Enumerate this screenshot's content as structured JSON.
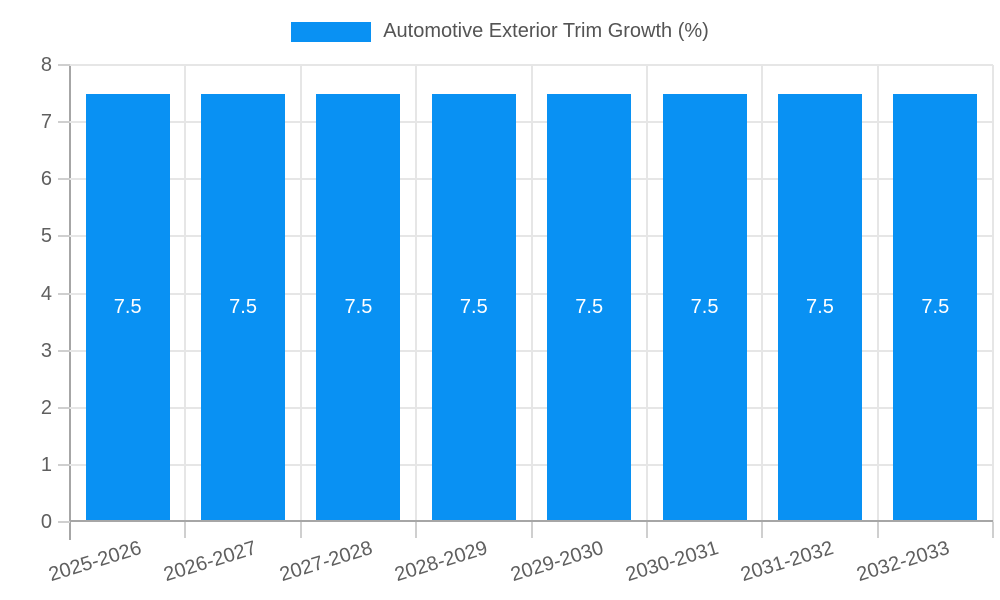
{
  "legend": {
    "label": "Automotive Exterior Trim Growth (%)"
  },
  "chart_data": {
    "type": "bar",
    "title": "Automotive Exterior Trim Growth (%)",
    "categories": [
      "2025-2026",
      "2026-2027",
      "2027-2028",
      "2028-2029",
      "2029-2030",
      "2030-2031",
      "2031-2032",
      "2032-2033"
    ],
    "values": [
      7.5,
      7.5,
      7.5,
      7.5,
      7.5,
      7.5,
      7.5,
      7.5
    ],
    "bar_labels": [
      "7.5",
      "7.5",
      "7.5",
      "7.5",
      "7.5",
      "7.5",
      "7.5",
      "7.5"
    ],
    "xlabel": "",
    "ylabel": "",
    "ylim": [
      0,
      8
    ],
    "yticks": [
      0,
      1,
      2,
      3,
      4,
      5,
      6,
      7,
      8
    ],
    "grid": true,
    "legend_position": "top",
    "colors": {
      "bar": "#0991F3",
      "bar_label": "#FFFFFF",
      "grid": "#E6E6E6",
      "axis": "#A6A6A6",
      "tick": "#CFCFCF",
      "text": "#5F5F5F"
    }
  }
}
